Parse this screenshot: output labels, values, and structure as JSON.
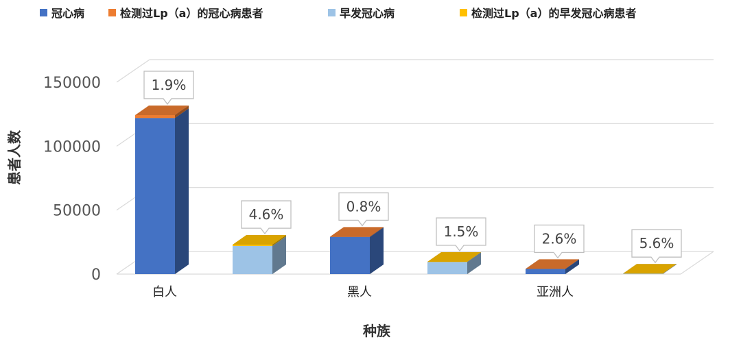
{
  "chart_data": {
    "type": "bar",
    "xlabel": "种族",
    "ylabel": "患者人数",
    "ylim": [
      0,
      150000
    ],
    "yticks": [
      0,
      50000,
      100000,
      150000
    ],
    "categories": [
      "白人",
      "黑人",
      "亚洲人"
    ],
    "series": [
      {
        "name": "冠心病",
        "color": "#4472C4",
        "values": [
          122000,
          29000,
          4000
        ]
      },
      {
        "name": "检测过Lp（a）的冠心病患者",
        "color": "#ED7D31",
        "values": [
          2318,
          232,
          104
        ]
      },
      {
        "name": "早发冠心病",
        "color": "#9DC3E6",
        "values": [
          22000,
          9500,
          400
        ]
      },
      {
        "name": "检测过Lp（a）的早发冠心病患者",
        "color": "#FFC000",
        "values": [
          1012,
          143,
          22
        ]
      }
    ],
    "stacks": [
      {
        "base_series": 0,
        "top_series": 1,
        "labels": [
          "1.9%",
          "0.8%",
          "2.6%"
        ]
      },
      {
        "base_series": 2,
        "top_series": 3,
        "labels": [
          "4.6%",
          "1.5%",
          "5.6%"
        ]
      }
    ],
    "grid": true,
    "legend_position": "top",
    "style": "3d-column"
  }
}
